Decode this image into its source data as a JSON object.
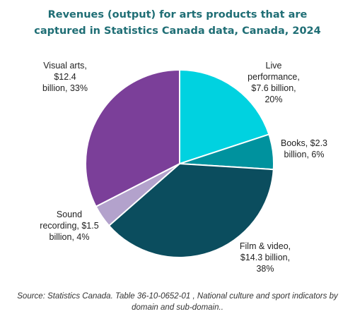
{
  "chart_data": {
    "type": "pie",
    "title_lines": [
      "Revenues (output) for arts products that are",
      "captured in Statistics Canada data, Canada, 2024"
    ],
    "unit": "billion",
    "slices": [
      {
        "category": "Live performance",
        "value": 7.6,
        "percent": 20,
        "color": "#00d2e0",
        "label_lines": [
          "Live",
          "performance,",
          "$7.6 billion,",
          "20%"
        ]
      },
      {
        "category": "Books",
        "value": 2.3,
        "percent": 6,
        "color": "#00929e",
        "label_lines": [
          "Books, $2.3",
          "billion, 6%"
        ]
      },
      {
        "category": "Film & video",
        "value": 14.3,
        "percent": 38,
        "color": "#0b4d5e",
        "label_lines": [
          "Film & video,",
          "$14.3 billion,",
          "38%"
        ]
      },
      {
        "category": "Sound recording",
        "value": 1.5,
        "percent": 4,
        "color": "#b3a2cc",
        "label_lines": [
          "Sound",
          "recording, $1.5",
          "billion, 4%"
        ]
      },
      {
        "category": "Visual arts",
        "value": 12.4,
        "percent": 33,
        "color": "#7b3f99",
        "label_lines": [
          "Visual arts,",
          "$12.4",
          "billion, 33%"
        ]
      }
    ],
    "start_angle_deg": 0,
    "direction": "clockwise",
    "legend": "none"
  },
  "source_lines": [
    "Source: Statistics Canada. Table 36-10-0652-01  , National culture and sport indicators by",
    "domain and sub-domain.."
  ]
}
